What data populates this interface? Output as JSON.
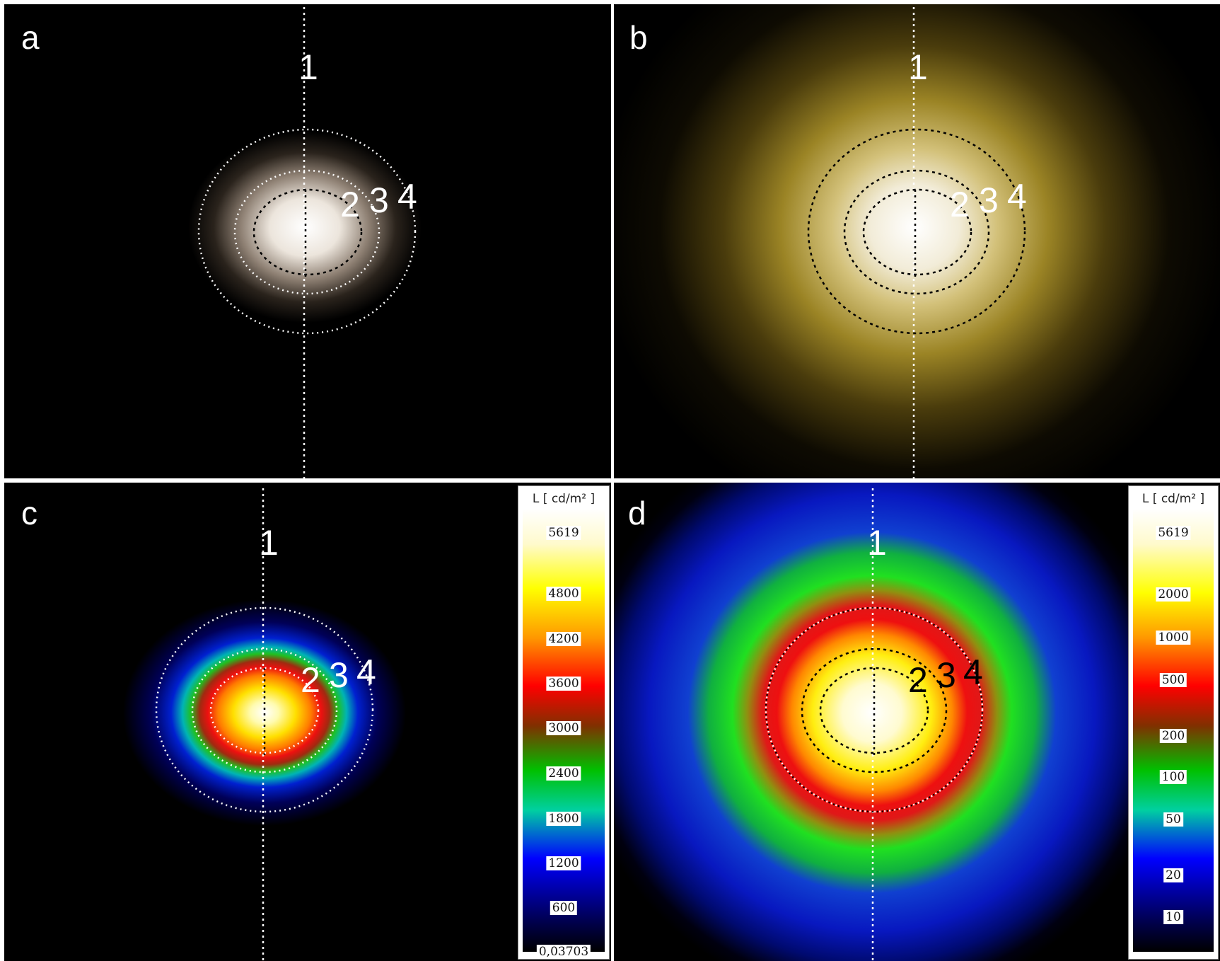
{
  "panels": {
    "a": {
      "letter": "a",
      "labels": [
        "1",
        "2",
        "3",
        "4"
      ]
    },
    "b": {
      "letter": "b",
      "labels": [
        "1",
        "2",
        "3",
        "4"
      ]
    },
    "c": {
      "letter": "c",
      "labels": [
        "1",
        "2",
        "3",
        "4"
      ],
      "legend": {
        "unit": "L [ cd/m² ]",
        "ticks": [
          "5619",
          "4800",
          "4200",
          "3600",
          "3000",
          "2400",
          "1800",
          "1200",
          "600",
          "0,03703"
        ]
      }
    },
    "d": {
      "letter": "d",
      "labels": [
        "1",
        "2",
        "3",
        "4"
      ],
      "legend": {
        "unit": "L [ cd/m² ]",
        "ticks": [
          "5619",
          "2000",
          "1000",
          "500",
          "200",
          "100",
          "50",
          "20",
          "10"
        ]
      }
    }
  },
  "colors": {
    "background": "#000000",
    "panel_border": "#ffffff"
  }
}
